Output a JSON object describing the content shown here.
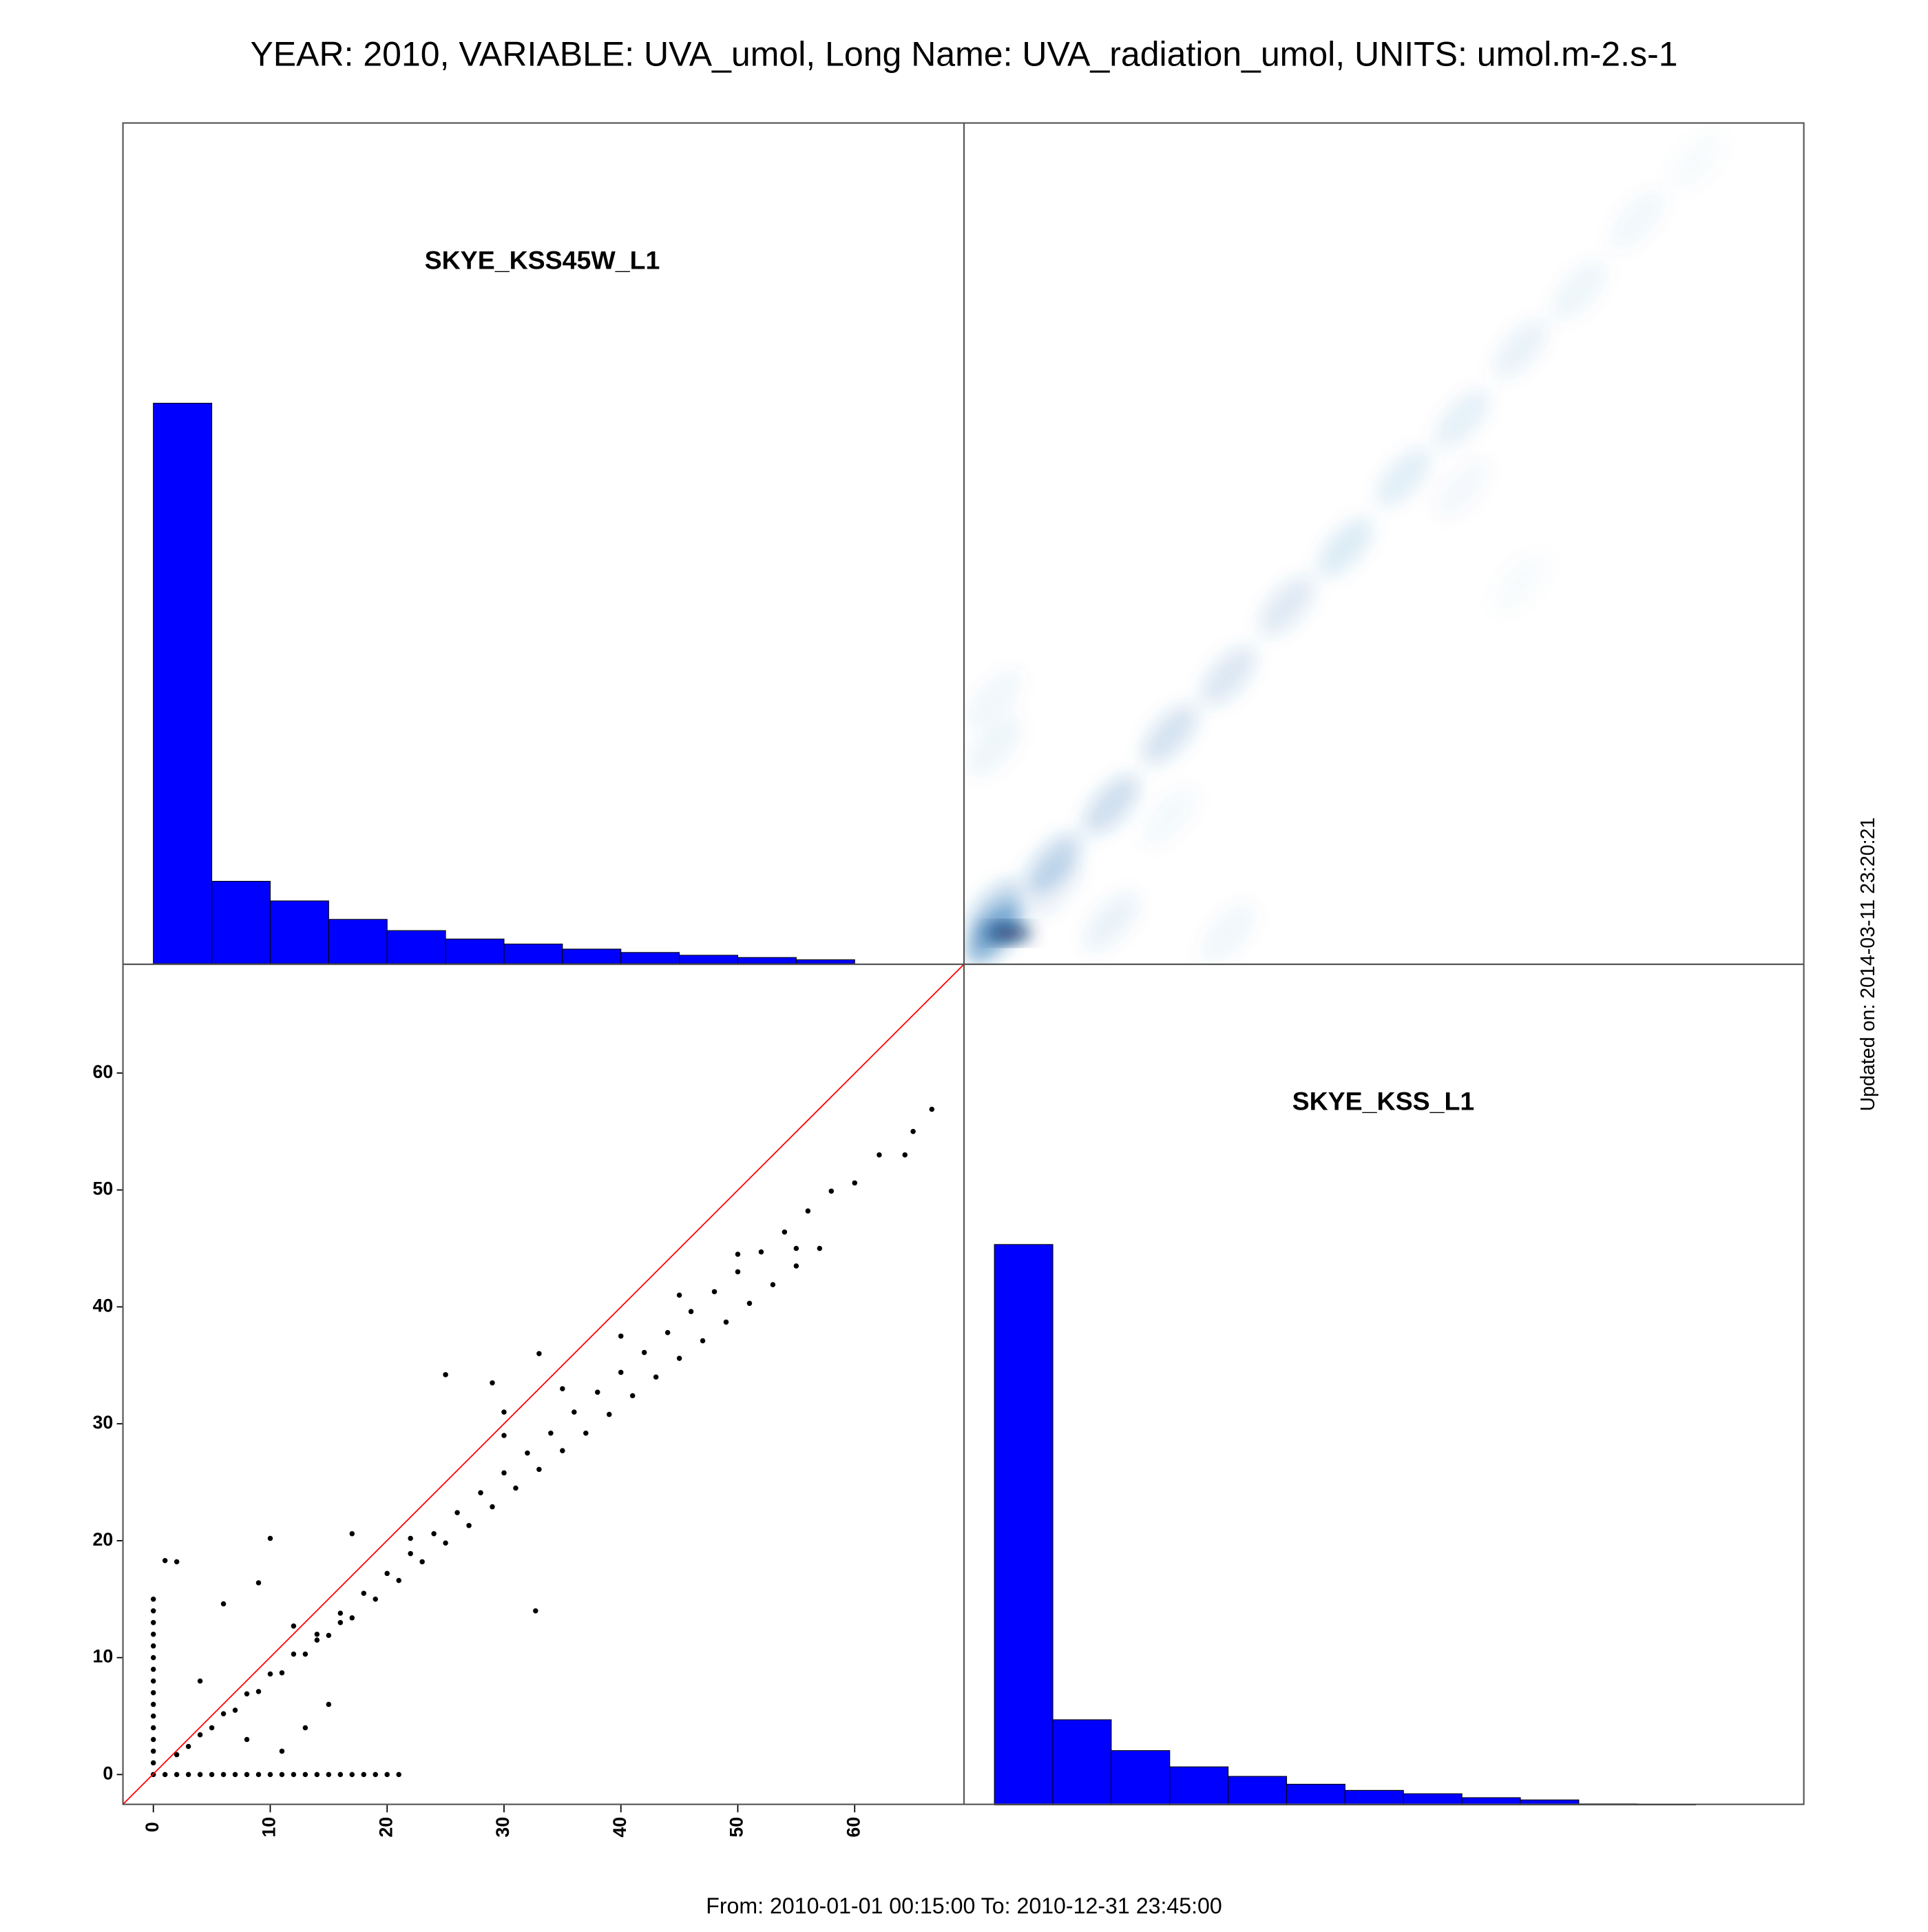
{
  "title": "YEAR: 2010, VARIABLE: UVA_umol, Long Name: UVA_radiation_umol, UNITS: umol.m-2.s-1",
  "footer": "From: 2010-01-01 00:15:00 To: 2010-12-31 23:45:00",
  "updated": "Updated on: 2014-03-11 23:20:21",
  "chart_data": [
    {
      "type": "histogram",
      "label": "SKYE_KSS45W_L1",
      "color": "#0000ff",
      "bins": [
        0,
        5,
        10,
        15,
        20,
        25,
        30,
        35,
        40,
        45,
        50,
        55,
        60
      ],
      "values": [
        1,
        0.147,
        0.112,
        0.079,
        0.059,
        0.044,
        0.035,
        0.026,
        0.02,
        0.015,
        0.011,
        0.007
      ],
      "xlim": [
        -2.6,
        69.3
      ],
      "ylim": [
        0,
        1.5
      ]
    },
    {
      "type": "density",
      "color": "#2171b5",
      "x": [
        0,
        0,
        5,
        10,
        15,
        20,
        25,
        30,
        35,
        40,
        45,
        50,
        55,
        60,
        0,
        0,
        5,
        10,
        20,
        15,
        45,
        40
      ],
      "y": [
        0,
        2,
        6,
        11,
        17,
        22,
        28,
        33,
        39,
        44,
        50,
        55,
        61,
        66,
        20,
        16,
        4,
        1,
        0,
        10,
        30,
        38
      ],
      "values": [
        1,
        0.5,
        0.45,
        0.4,
        0.35,
        0.3,
        0.27,
        0.24,
        0.21,
        0.18,
        0.15,
        0.12,
        0.09,
        0.06,
        0.1,
        0.12,
        0.2,
        0.15,
        0.1,
        0.08,
        0.06,
        0.07
      ],
      "xlim": [
        -2.6,
        69.3
      ],
      "ylim": [
        -2.6,
        69.3
      ]
    },
    {
      "type": "scatter",
      "color": "#000000",
      "reference_color": "#ff0000",
      "x": [
        2,
        4,
        6,
        8,
        10,
        12,
        14,
        16,
        18,
        20,
        22,
        24,
        26,
        28,
        30,
        32,
        34,
        36,
        38,
        40,
        42,
        44,
        46,
        48,
        50,
        52,
        54,
        56,
        58,
        60,
        3,
        5,
        7,
        9,
        11,
        13,
        15,
        17,
        19,
        21,
        23,
        25,
        27,
        29,
        31,
        33,
        35,
        37,
        39,
        41,
        43,
        45,
        47,
        49,
        51,
        53,
        55,
        57,
        55,
        50,
        45,
        40,
        35,
        30,
        25,
        29,
        33,
        30,
        32.7,
        22,
        17,
        10,
        1,
        2,
        6,
        9,
        12,
        14,
        16,
        4,
        8,
        11,
        13,
        15,
        62.1,
        64.3,
        65,
        66.6,
        0,
        1,
        2,
        3,
        4,
        5,
        6,
        7,
        8,
        9,
        10,
        11,
        12,
        13,
        14,
        15,
        16,
        17,
        18,
        19,
        20,
        21,
        0,
        0,
        0,
        0,
        0,
        0,
        0,
        0,
        0,
        0,
        0,
        0,
        0,
        0,
        0
      ],
      "y": [
        1.7,
        3.4,
        5.2,
        6.9,
        8.6,
        10.3,
        12,
        13.8,
        15.5,
        17.2,
        18.9,
        20.6,
        22.4,
        24.1,
        25.8,
        27.5,
        29.2,
        31,
        32.7,
        34.4,
        36.1,
        37.8,
        39.6,
        41.3,
        43,
        44.7,
        46.4,
        48.2,
        49.9,
        50.6,
        2.4,
        4,
        5.5,
        7.1,
        8.7,
        10.3,
        11.9,
        13.4,
        15,
        16.6,
        18.2,
        19.8,
        21.3,
        22.9,
        24.5,
        26.1,
        27.7,
        29.2,
        30.8,
        32.4,
        34,
        35.6,
        37.1,
        38.7,
        40.3,
        41.9,
        43.5,
        45,
        45,
        44.5,
        41,
        37.5,
        33,
        29,
        34.2,
        33.5,
        36,
        31,
        14,
        20.2,
        20.6,
        20.2,
        18.3,
        18.2,
        14.6,
        16.4,
        12.7,
        11.5,
        13,
        8,
        3,
        2,
        4,
        6,
        53,
        53,
        55,
        56.9,
        0,
        0,
        0,
        0,
        0,
        0,
        0,
        0,
        0,
        0,
        0,
        0,
        0,
        0,
        0,
        0,
        0,
        0,
        0,
        0,
        0,
        0,
        1,
        2,
        3,
        4,
        5,
        6,
        7,
        8,
        9,
        10,
        11,
        12,
        13,
        14,
        15
      ],
      "xlim": [
        -2.6,
        69.3
      ],
      "ylim": [
        -2.6,
        69.3
      ],
      "xticks": [
        0,
        10,
        20,
        30,
        40,
        50,
        60
      ],
      "yticks": [
        0,
        10,
        20,
        30,
        40,
        50,
        60
      ]
    },
    {
      "type": "histogram",
      "label": "SKYE_KSS_L1",
      "color": "#0000ff",
      "bins": [
        0,
        5,
        10,
        15,
        20,
        25,
        30,
        35,
        40,
        45,
        50,
        55,
        60
      ],
      "values": [
        1,
        0.152,
        0.097,
        0.068,
        0.051,
        0.037,
        0.026,
        0.02,
        0.013,
        0.009,
        0.002,
        0.001
      ],
      "xlim": [
        -2.6,
        69.3
      ],
      "ylim": [
        0,
        1.5
      ]
    }
  ]
}
